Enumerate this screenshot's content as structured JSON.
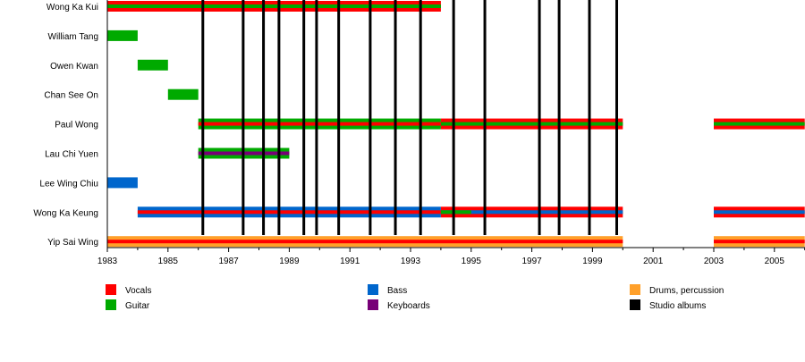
{
  "chart_data": {
    "type": "timeline",
    "xlim": [
      1983,
      2006
    ],
    "x_ticks": [
      "1983",
      "1985",
      "1987",
      "1989",
      "1991",
      "1993",
      "1995",
      "1997",
      "1999",
      "2001",
      "2003",
      "2005"
    ],
    "colors": {
      "Vocals": "#ff0000",
      "Guitar": "#00aa00",
      "Bass": "#0066cc",
      "Keyboards": "#770077",
      "Drums, percussion": "#ffa02a",
      "Studio albums": "#000000"
    },
    "members": [
      {
        "name": "Wong Ka Kui",
        "bars": [
          {
            "from": 1983,
            "to": 1994,
            "outer": "Vocals",
            "inner": "Guitar"
          }
        ]
      },
      {
        "name": "William Tang",
        "bars": [
          {
            "from": 1983,
            "to": 1984,
            "outer": "Guitar"
          }
        ]
      },
      {
        "name": "Owen Kwan",
        "bars": [
          {
            "from": 1984,
            "to": 1985,
            "outer": "Guitar"
          }
        ]
      },
      {
        "name": "Chan See On",
        "bars": [
          {
            "from": 1985,
            "to": 1986,
            "outer": "Guitar"
          }
        ]
      },
      {
        "name": "Paul Wong",
        "bars": [
          {
            "from": 1986,
            "to": 1994,
            "outer": "Guitar",
            "inner": "Vocals"
          },
          {
            "from": 1994,
            "to": 2000,
            "outer": "Vocals",
            "inner": "Guitar"
          },
          {
            "from": 2003,
            "to": 2006,
            "outer": "Vocals",
            "inner": "Guitar"
          }
        ]
      },
      {
        "name": "Lau Chi Yuen",
        "bars": [
          {
            "from": 1986,
            "to": 1989,
            "outer": "Guitar",
            "inner": "Keyboards"
          }
        ]
      },
      {
        "name": "Lee Wing Chiu",
        "bars": [
          {
            "from": 1983,
            "to": 1984,
            "outer": "Bass"
          }
        ]
      },
      {
        "name": "Wong Ka Keung",
        "bars": [
          {
            "from": 1984,
            "to": 1994,
            "outer": "Bass",
            "inner": "Vocals"
          },
          {
            "from": 1994,
            "to": 2000,
            "outer": "Vocals",
            "inner": "Bass"
          },
          {
            "from": 1994,
            "to": 1995,
            "inner": "Guitar"
          },
          {
            "from": 2003,
            "to": 2006,
            "outer": "Vocals",
            "inner": "Bass"
          }
        ]
      },
      {
        "name": "Yip Sai Wing",
        "bars": [
          {
            "from": 1983,
            "to": 2000,
            "outer": "Drums, percussion",
            "inner": "Vocals"
          },
          {
            "from": 2003,
            "to": 2006,
            "outer": "Drums, percussion",
            "inner": "Vocals"
          }
        ]
      }
    ],
    "studio_albums": [
      1986.15,
      1987.48,
      1988.15,
      1988.66,
      1989.48,
      1989.9,
      1990.63,
      1991.67,
      1992.5,
      1993.33,
      1994.42,
      1995.45,
      1997.25,
      1997.9,
      1998.9,
      1999.8
    ],
    "legend": [
      "Vocals",
      "Guitar",
      "Bass",
      "Keyboards",
      "Drums, percussion",
      "Studio albums"
    ],
    "legend_placement": "bottom"
  }
}
